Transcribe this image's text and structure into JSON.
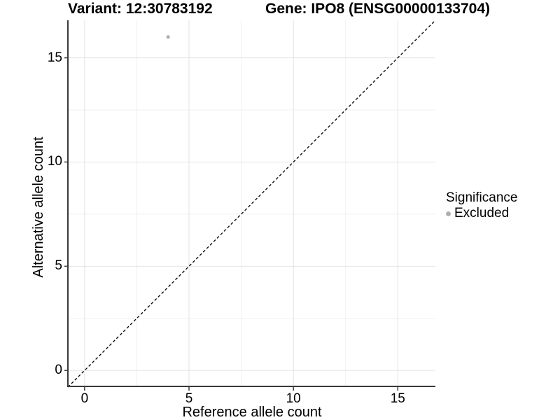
{
  "chart_data": {
    "type": "scatter",
    "title_left": "Variant: 12:30783192",
    "title_right": "Gene: IPO8 (ENSG00000133704)",
    "xlabel": "Reference allele count",
    "ylabel": "Alternative allele count",
    "xlim": [
      -0.8,
      16.8
    ],
    "ylim": [
      -0.8,
      16.8
    ],
    "xticks": [
      0,
      5,
      10,
      15
    ],
    "yticks": [
      0,
      5,
      10,
      15
    ],
    "xminor": [
      2.5,
      7.5,
      12.5
    ],
    "yminor": [
      2.5,
      7.5,
      12.5
    ],
    "grid": "major and minor, light gray on white",
    "identity_line": {
      "style": "dashed",
      "color": "#000000",
      "from": [
        -0.8,
        -0.8
      ],
      "to": [
        16.8,
        16.8
      ]
    },
    "series": [
      {
        "name": "Excluded",
        "color": "#b0b0b0",
        "points": [
          [
            4,
            16
          ]
        ]
      }
    ],
    "legend": {
      "position": "right",
      "title": "Significance",
      "entries": [
        {
          "label": "Excluded",
          "color": "#b0b0b0"
        }
      ]
    },
    "colors": {
      "background": "#ffffff",
      "axis_line": "#3a3a3a",
      "grid_major": "#e3e3e3",
      "grid_minor": "#f0f0f0",
      "text": "#000000"
    }
  }
}
